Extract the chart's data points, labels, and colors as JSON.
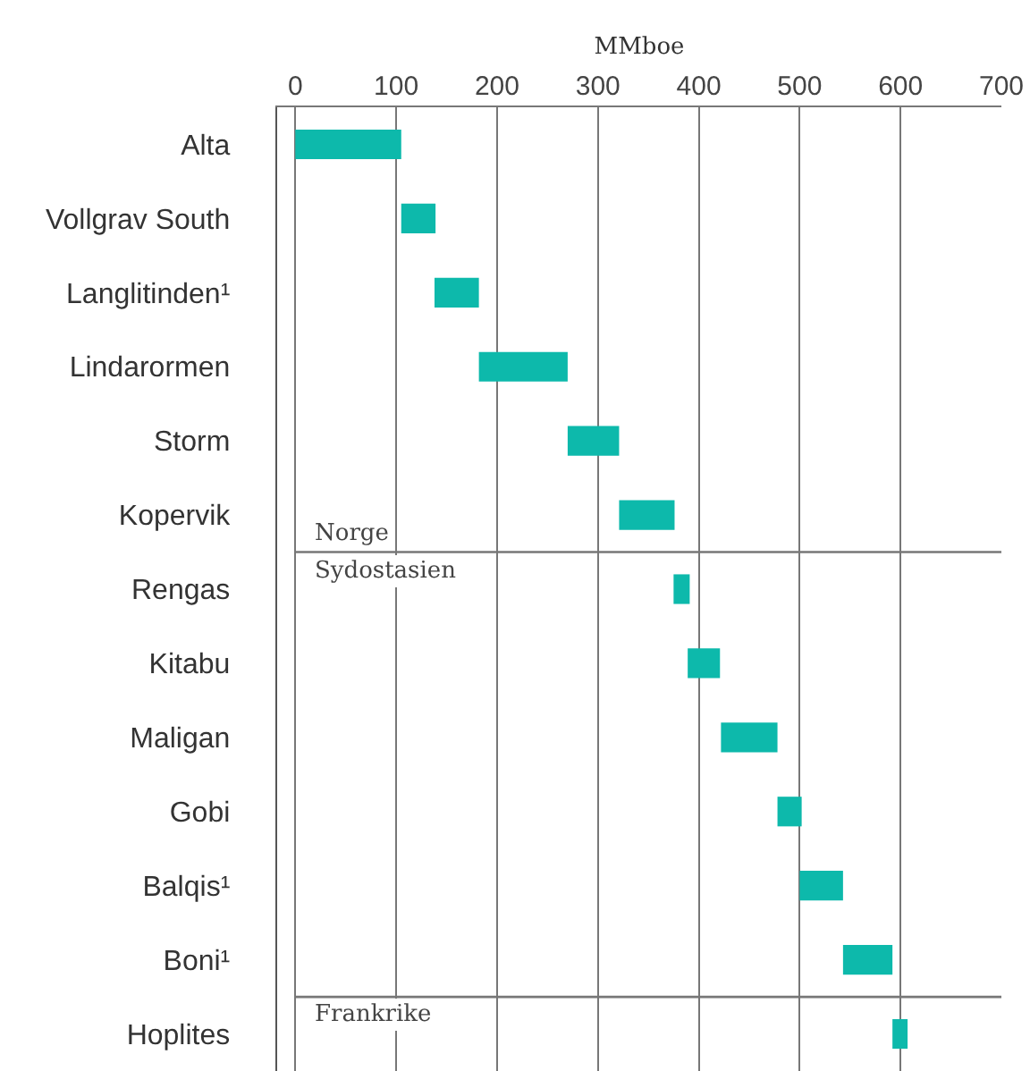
{
  "chart_data": {
    "type": "bar",
    "orientation": "horizontal",
    "xlabel": "MMboe",
    "categories": [
      "Alta",
      "Vollgrav South",
      "Langlitinden¹",
      "Lindarormen",
      "Storm",
      "Kopervik",
      "Rengas",
      "Kitabu",
      "Maligan",
      "Gobi",
      "Balqis¹",
      "Boni¹",
      "Hoplites"
    ],
    "base": [
      0,
      105,
      138,
      182,
      270,
      321,
      375,
      389,
      422,
      478,
      500,
      543,
      592
    ],
    "values": [
      105,
      34,
      44,
      88,
      51,
      55,
      16,
      32,
      56,
      24,
      43,
      49,
      15
    ],
    "color": "#0db9ab",
    "xlim": [
      -18,
      700
    ],
    "xticks": [
      0,
      100,
      200,
      300,
      400,
      500,
      600,
      700
    ],
    "grid": "x",
    "annotations": [
      "Norge",
      "Sydostasien",
      "Frankrike"
    ]
  }
}
